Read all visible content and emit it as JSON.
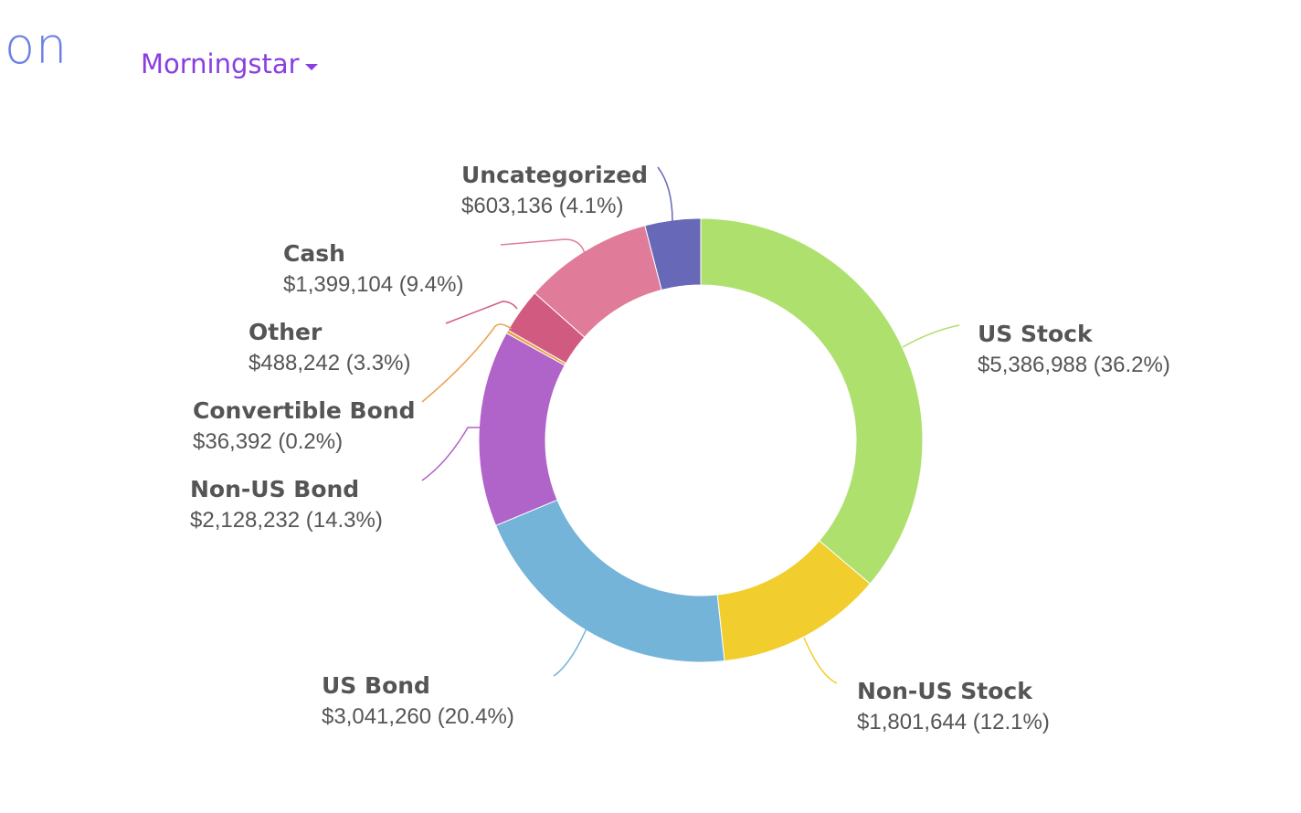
{
  "header": {
    "title_fragment": "cation",
    "source_selector": {
      "label": "Morningstar"
    }
  },
  "chart_data": {
    "type": "pie",
    "donut": true,
    "title": "",
    "slices": [
      {
        "name": "US Stock",
        "value": 5386988,
        "value_label": "$5,386,988",
        "percent_label": "(36.2%)",
        "color": "#aee06e"
      },
      {
        "name": "Non-US Stock",
        "value": 1801644,
        "value_label": "$1,801,644",
        "percent_label": "(12.1%)",
        "color": "#f1ce2e"
      },
      {
        "name": "US Bond",
        "value": 3041260,
        "value_label": "$3,041,260",
        "percent_label": "(20.4%)",
        "color": "#74b4d9"
      },
      {
        "name": "Non-US Bond",
        "value": 2128232,
        "value_label": "$2,128,232",
        "percent_label": "(14.3%)",
        "color": "#b063c8"
      },
      {
        "name": "Convertible Bond",
        "value": 36392,
        "value_label": "$36,392",
        "percent_label": "(0.2%)",
        "color": "#eaa24a"
      },
      {
        "name": "Other",
        "value": 488242,
        "value_label": "$488,242",
        "percent_label": "(3.3%)",
        "color": "#d15a80"
      },
      {
        "name": "Cash",
        "value": 1399104,
        "value_label": "$1,399,104",
        "percent_label": "(9.4%)",
        "color": "#e07c99"
      },
      {
        "name": "Uncategorized",
        "value": 603136,
        "value_label": "$603,136",
        "percent_label": "(4.1%)",
        "color": "#6868b8"
      }
    ]
  }
}
